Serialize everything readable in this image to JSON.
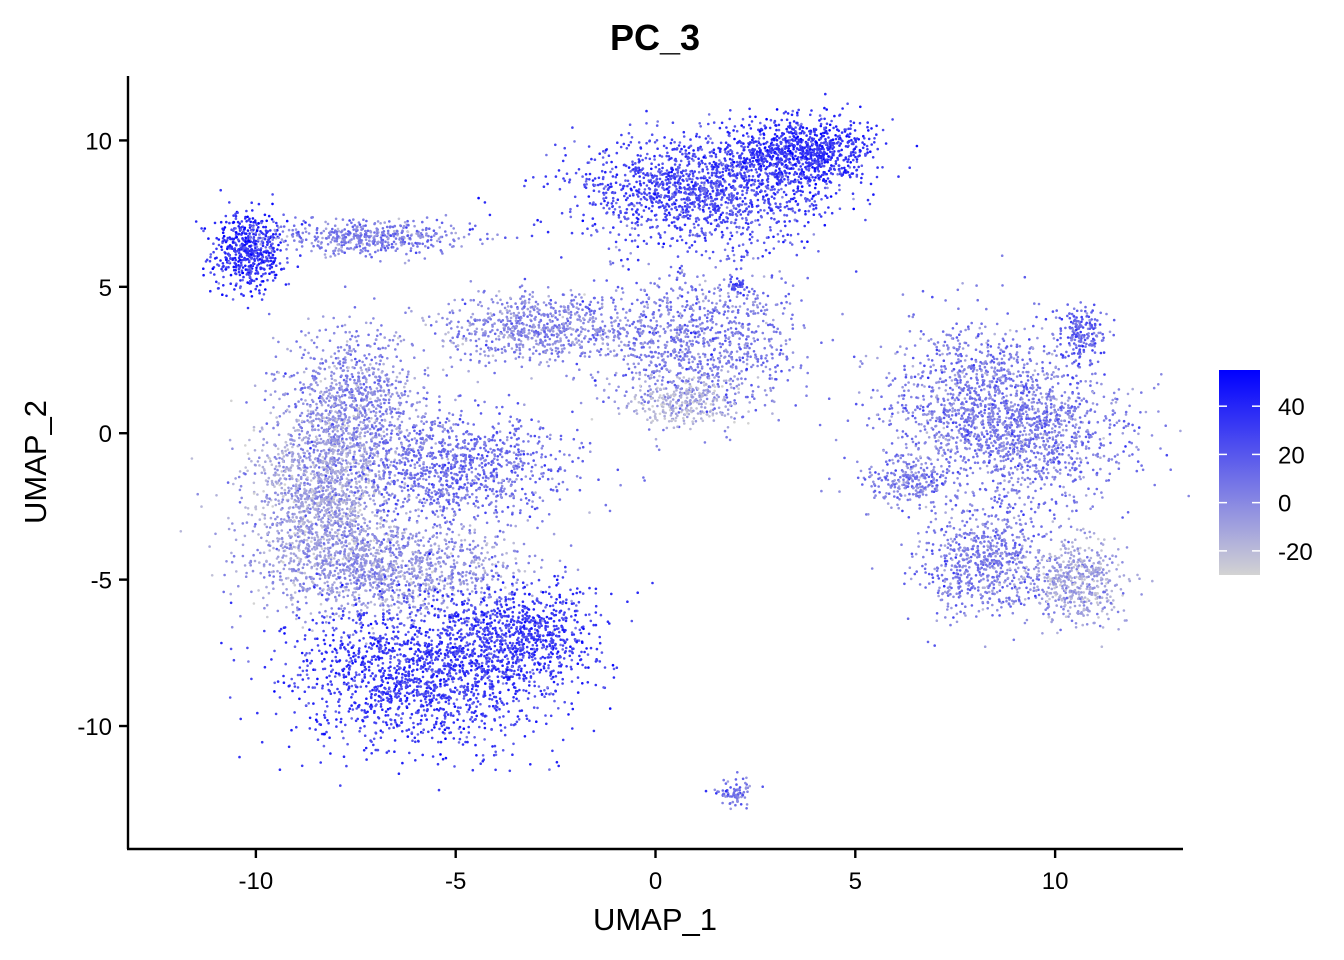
{
  "chart_data": {
    "type": "scatter",
    "title": "PC_3",
    "xlabel": "UMAP_1",
    "ylabel": "UMAP_2",
    "xlim": [
      -13.2,
      13.2
    ],
    "ylim": [
      -14.2,
      12.2
    ],
    "x_ticks": [
      -10,
      -5,
      0,
      5,
      10
    ],
    "y_ticks": [
      10,
      5,
      0,
      -5,
      -10
    ],
    "x_tick_labels": [
      "-10",
      "-5",
      "0",
      "5",
      "10"
    ],
    "y_tick_labels": [
      "10",
      "5",
      "0",
      "-5",
      "-10"
    ],
    "grid": false,
    "color_scale": {
      "low_color": "#d3d3d3",
      "high_color": "#0000ff",
      "min": -30,
      "max": 55,
      "ticks": [
        40,
        20,
        0,
        -20
      ],
      "tick_labels": [
        "40",
        "20",
        "0",
        "-20"
      ],
      "legend_position": "right"
    },
    "clusters": [
      {
        "cx": -10.2,
        "cy": 6.2,
        "sx": 0.45,
        "sy": 0.7,
        "n": 550,
        "value": 35
      },
      {
        "cx": -7.2,
        "cy": 6.7,
        "sx": 1.3,
        "sy": 0.3,
        "n": 500,
        "value": 5
      },
      {
        "cx": 1.2,
        "cy": 8.3,
        "sx": 1.6,
        "sy": 0.9,
        "n": 1500,
        "value": 25
      },
      {
        "cx": 3.6,
        "cy": 9.6,
        "sx": 0.9,
        "sy": 0.6,
        "n": 900,
        "value": 35
      },
      {
        "cx": 1.0,
        "cy": 3.2,
        "sx": 1.3,
        "sy": 1.2,
        "n": 1000,
        "value": 5
      },
      {
        "cx": 0.7,
        "cy": 1.1,
        "sx": 0.7,
        "sy": 0.4,
        "n": 300,
        "value": -15
      },
      {
        "cx": -3.0,
        "cy": 3.6,
        "sx": 1.2,
        "sy": 0.6,
        "n": 700,
        "value": 0
      },
      {
        "cx": -7.5,
        "cy": 1.0,
        "sx": 0.9,
        "sy": 1.3,
        "n": 900,
        "value": 0
      },
      {
        "cx": -8.3,
        "cy": -2.2,
        "sx": 0.9,
        "sy": 1.6,
        "n": 1600,
        "value": -10
      },
      {
        "cx": -5.0,
        "cy": -1.2,
        "sx": 1.4,
        "sy": 1.0,
        "n": 1000,
        "value": 10
      },
      {
        "cx": -6.5,
        "cy": -4.6,
        "sx": 1.6,
        "sy": 0.8,
        "n": 1100,
        "value": -5
      },
      {
        "cx": -5.8,
        "cy": -8.2,
        "sx": 1.7,
        "sy": 1.3,
        "n": 1700,
        "value": 30
      },
      {
        "cx": -3.4,
        "cy": -6.9,
        "sx": 0.9,
        "sy": 0.8,
        "n": 700,
        "value": 30
      },
      {
        "cx": 8.0,
        "cy": 1.2,
        "sx": 1.2,
        "sy": 1.3,
        "n": 1000,
        "value": 5
      },
      {
        "cx": 9.5,
        "cy": 0.0,
        "sx": 1.2,
        "sy": 1.2,
        "n": 900,
        "value": 5
      },
      {
        "cx": 10.7,
        "cy": 3.4,
        "sx": 0.3,
        "sy": 0.5,
        "n": 200,
        "value": 15
      },
      {
        "cx": 8.2,
        "cy": -4.3,
        "sx": 0.8,
        "sy": 1.0,
        "n": 700,
        "value": 5
      },
      {
        "cx": 10.5,
        "cy": -5.0,
        "sx": 0.6,
        "sy": 0.8,
        "n": 500,
        "value": -10
      },
      {
        "cx": 6.4,
        "cy": -1.6,
        "sx": 0.6,
        "sy": 0.4,
        "n": 250,
        "value": 5
      },
      {
        "cx": 2.0,
        "cy": -12.3,
        "sx": 0.25,
        "sy": 0.2,
        "n": 80,
        "value": 10
      },
      {
        "cx": 2.0,
        "cy": 5.0,
        "sx": 0.15,
        "sy": 0.15,
        "n": 40,
        "value": 25
      }
    ]
  }
}
